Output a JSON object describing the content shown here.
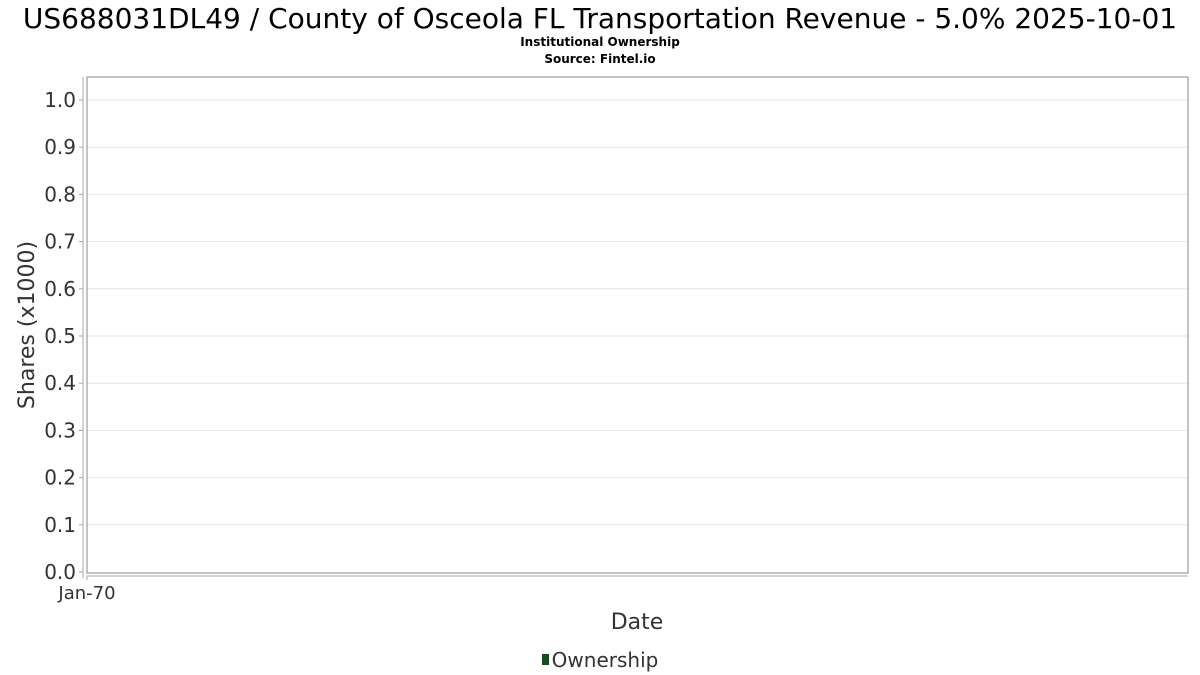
{
  "chart_data": {
    "type": "line",
    "title": "US688031DL49 / County of Osceola FL Transportation Revenue - 5.0% 2025-10-01",
    "subtitle": "Institutional Ownership",
    "source": "Source: Fintel.io",
    "xlabel": "Date",
    "ylabel": "Shares (x1000)",
    "x_ticks": [
      "Jan-70"
    ],
    "y_ticks": [
      "0.0",
      "0.1",
      "0.2",
      "0.3",
      "0.4",
      "0.5",
      "0.6",
      "0.7",
      "0.8",
      "0.9",
      "1.0"
    ],
    "ylim": [
      0,
      1.05
    ],
    "grid": true,
    "legend_position": "bottom",
    "series": [
      {
        "name": "Ownership",
        "color": "#1c4a1c",
        "x": [],
        "values": []
      }
    ]
  }
}
